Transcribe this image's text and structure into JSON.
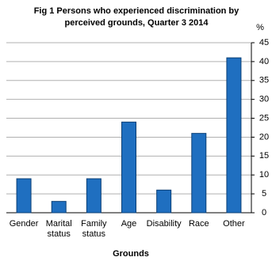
{
  "chart_data": {
    "type": "bar",
    "title": [
      "Fig 1 Persons who experienced discrimination by",
      "perceived grounds, Quarter 3 2014"
    ],
    "y_unit": "%",
    "x_label": "Grounds",
    "categories": [
      "Gender",
      "Marital status",
      "Family status",
      "Age",
      "Disability",
      "Race",
      "Other"
    ],
    "values": [
      9,
      3,
      9,
      24,
      6,
      21,
      41
    ],
    "color": "#1f6fc0",
    "ylim": [
      0,
      45
    ],
    "yticks": [
      0,
      5,
      10,
      15,
      20,
      25,
      30,
      35,
      40,
      45
    ],
    "grid": true
  }
}
